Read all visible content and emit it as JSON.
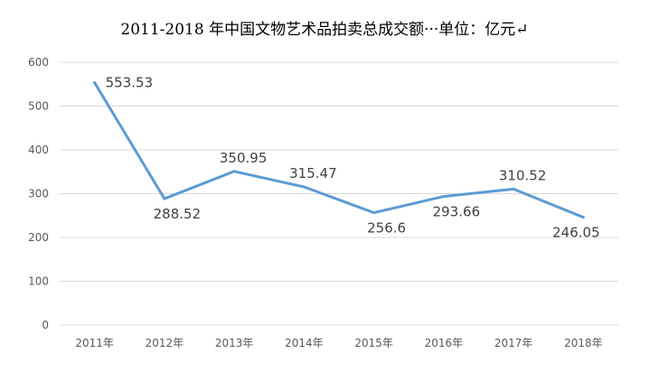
{
  "chart_data": {
    "type": "line",
    "title": "2011-2018 年中国文物艺术品拍卖总成交额···单位：亿元↵",
    "categories": [
      "2011年",
      "2012年",
      "2013年",
      "2014年",
      "2015年",
      "2016年",
      "2017年",
      "2018年"
    ],
    "series": [
      {
        "values": [
          553.53,
          288.52,
          350.95,
          315.47,
          256.6,
          293.66,
          310.52,
          246.05
        ],
        "labels": [
          "553.53",
          "288.52",
          "350.95",
          "315.47",
          "256.6",
          "293.66",
          "310.52",
          "246.05"
        ],
        "color": "#5b9bd5"
      }
    ],
    "ylim": [
      0,
      600
    ],
    "yticks": [
      0,
      100,
      200,
      300,
      400,
      500,
      600
    ],
    "grid": true,
    "legend": "none",
    "colors": {
      "grid": "#d9d9d9",
      "axis": "#d9d9d9",
      "text": "#595959"
    }
  }
}
